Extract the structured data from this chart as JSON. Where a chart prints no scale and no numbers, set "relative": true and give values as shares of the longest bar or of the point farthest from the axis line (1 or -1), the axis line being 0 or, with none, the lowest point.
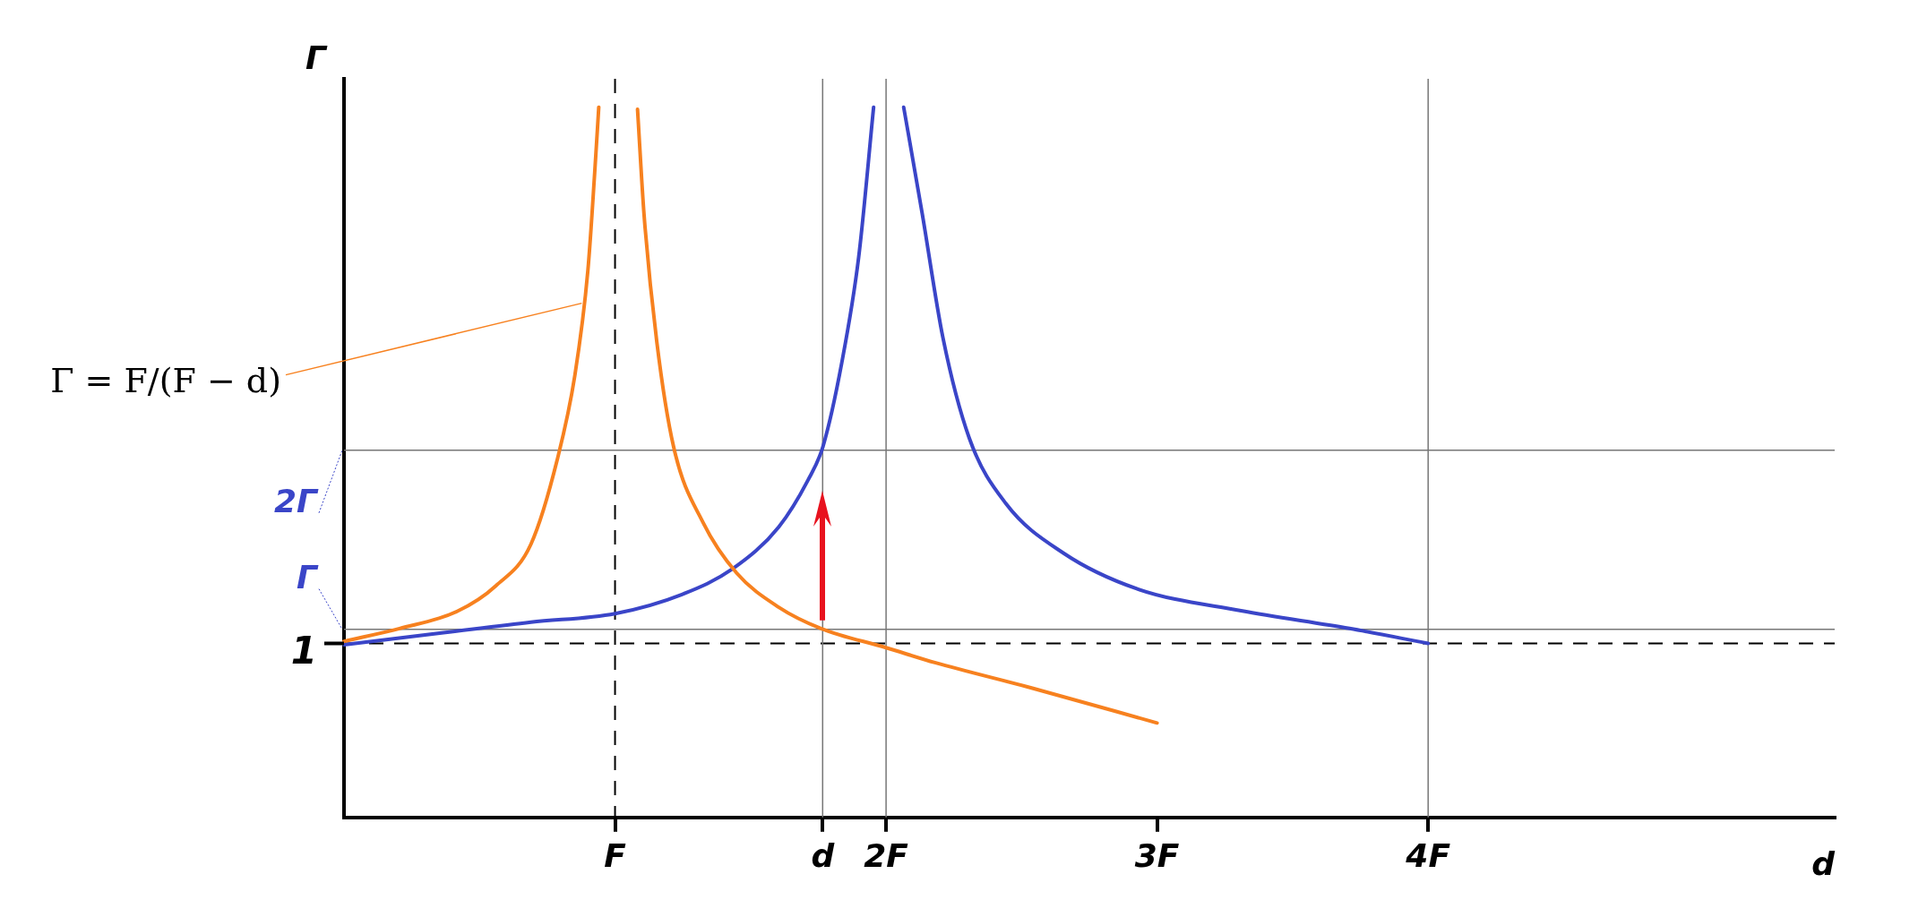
{
  "chart_data": {
    "type": "line",
    "relative": true,
    "xlabel": "d",
    "ylabel": "Γ",
    "marker": "none",
    "line_style": "solid",
    "xlim": [
      0,
      5.5
    ],
    "xticks": [
      {
        "value": 1,
        "label": "F"
      },
      {
        "value": 1.766,
        "label": "d"
      },
      {
        "value": 2,
        "label": "2F"
      },
      {
        "value": 3,
        "label": "3F"
      },
      {
        "value": 4,
        "label": "4F"
      }
    ],
    "series": [
      {
        "color": "#f7811f",
        "x": [
          0,
          0.205,
          0.417,
          0.56,
          0.69,
          0.787,
          0.852,
          0.9,
          0.925,
          0.94,
          1.0,
          1.083,
          1.107,
          1.154,
          1.216,
          1.325,
          1.449,
          1.604,
          1.76,
          2.0,
          2.18,
          2.54,
          3.0
        ],
        "values": [
          0.248,
          0.266,
          0.29,
          0.326,
          0.385,
          0.504,
          0.623,
          0.771,
          0.908,
          1.0,
          null,
          0.997,
          0.849,
          0.67,
          0.522,
          0.415,
          0.344,
          0.296,
          0.266,
          0.239,
          0.218,
          0.182,
          0.133
        ]
      },
      {
        "color": "#3a45c8",
        "x": [
          0,
          0.367,
          0.69,
          1.0,
          1.247,
          1.434,
          1.604,
          1.712,
          1.767,
          1.837,
          1.899,
          1.954,
          2.0,
          2.065,
          2.133,
          2.21,
          2.307,
          2.442,
          2.655,
          2.925,
          3.31,
          3.71,
          4.0
        ],
        "values": [
          0.243,
          0.26,
          0.275,
          0.287,
          0.314,
          0.35,
          0.409,
          0.475,
          0.522,
          0.641,
          0.789,
          1.0,
          null,
          1.0,
          0.851,
          0.675,
          0.534,
          0.442,
          0.372,
          0.322,
          0.291,
          0.266,
          0.245
        ]
      }
    ],
    "ref_lines": [
      {
        "axis": "y",
        "value": 0.245,
        "line_style": "dashed"
      },
      {
        "axis": "y",
        "value": 0.265,
        "label": "Γ"
      },
      {
        "axis": "y",
        "value": 0.517,
        "label": "2Γ"
      },
      {
        "axis": "x",
        "value": 1,
        "line_style": "dashed"
      },
      {
        "axis": "x",
        "value": 1.766
      },
      {
        "axis": "x",
        "value": 2
      },
      {
        "axis": "x",
        "value": 4
      }
    ],
    "annotations": [
      {
        "text": "1",
        "x": 0,
        "y": 0.245
      },
      {
        "text": "Γ = F/(F − d)",
        "x": 0.877,
        "y": 0.724
      }
    ]
  }
}
